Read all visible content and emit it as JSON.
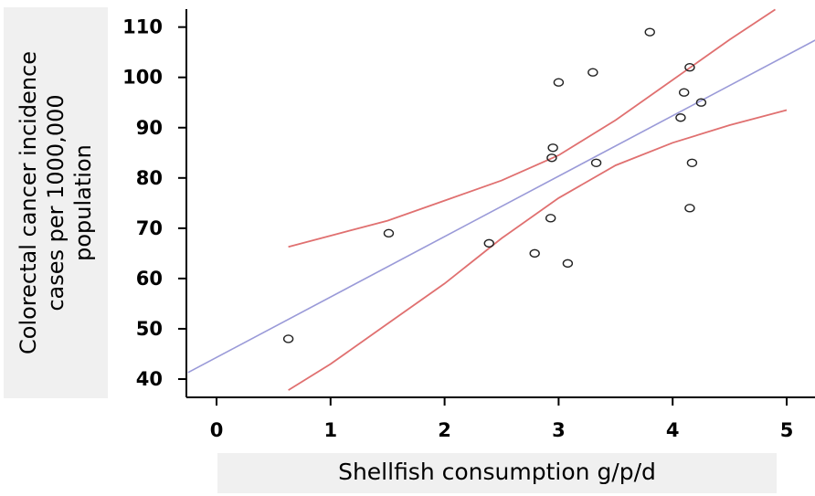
{
  "chart_data": {
    "type": "scatter",
    "title": "",
    "xlabel": "Shellfish consumption g/p/d",
    "ylabel_lines": [
      "Colorectal cancer incidence",
      "cases per 1000,000",
      "population"
    ],
    "xlim": [
      -0.25,
      5.25
    ],
    "ylim": [
      37,
      114
    ],
    "x_ticks": [
      0,
      1,
      2,
      3,
      4,
      5
    ],
    "y_ticks": [
      40,
      50,
      60,
      70,
      80,
      90,
      100,
      110
    ],
    "grid": false,
    "points": [
      {
        "x": 0.63,
        "y": 48
      },
      {
        "x": 1.51,
        "y": 69
      },
      {
        "x": 2.39,
        "y": 67
      },
      {
        "x": 2.79,
        "y": 65
      },
      {
        "x": 2.93,
        "y": 72
      },
      {
        "x": 2.94,
        "y": 84
      },
      {
        "x": 2.95,
        "y": 86
      },
      {
        "x": 3.0,
        "y": 99
      },
      {
        "x": 3.08,
        "y": 63
      },
      {
        "x": 3.3,
        "y": 101
      },
      {
        "x": 3.33,
        "y": 83
      },
      {
        "x": 3.8,
        "y": 109
      },
      {
        "x": 4.07,
        "y": 92
      },
      {
        "x": 4.1,
        "y": 97
      },
      {
        "x": 4.15,
        "y": 102
      },
      {
        "x": 4.15,
        "y": 74
      },
      {
        "x": 4.17,
        "y": 83
      },
      {
        "x": 4.25,
        "y": 95
      }
    ],
    "fit_line": {
      "color": "#9a9ad8",
      "x": [
        -0.25,
        5.25
      ],
      "y": [
        41.3,
        107.4
      ]
    },
    "ci_upper": {
      "color": "#e07070",
      "x": [
        0.63,
        1.5,
        2.0,
        2.5,
        3.0,
        3.5,
        4.0,
        4.5,
        4.9
      ],
      "y": [
        66.3,
        71.5,
        75.5,
        79.5,
        84.5,
        91.5,
        99.5,
        107.5,
        113.5
      ]
    },
    "ci_lower": {
      "color": "#e07070",
      "x": [
        0.63,
        1.0,
        1.5,
        2.0,
        2.5,
        3.0,
        3.5,
        4.0,
        4.5,
        5.0
      ],
      "y": [
        37.8,
        43.0,
        51.0,
        59.0,
        68.0,
        76.0,
        82.5,
        87.0,
        90.5,
        93.5
      ]
    }
  }
}
